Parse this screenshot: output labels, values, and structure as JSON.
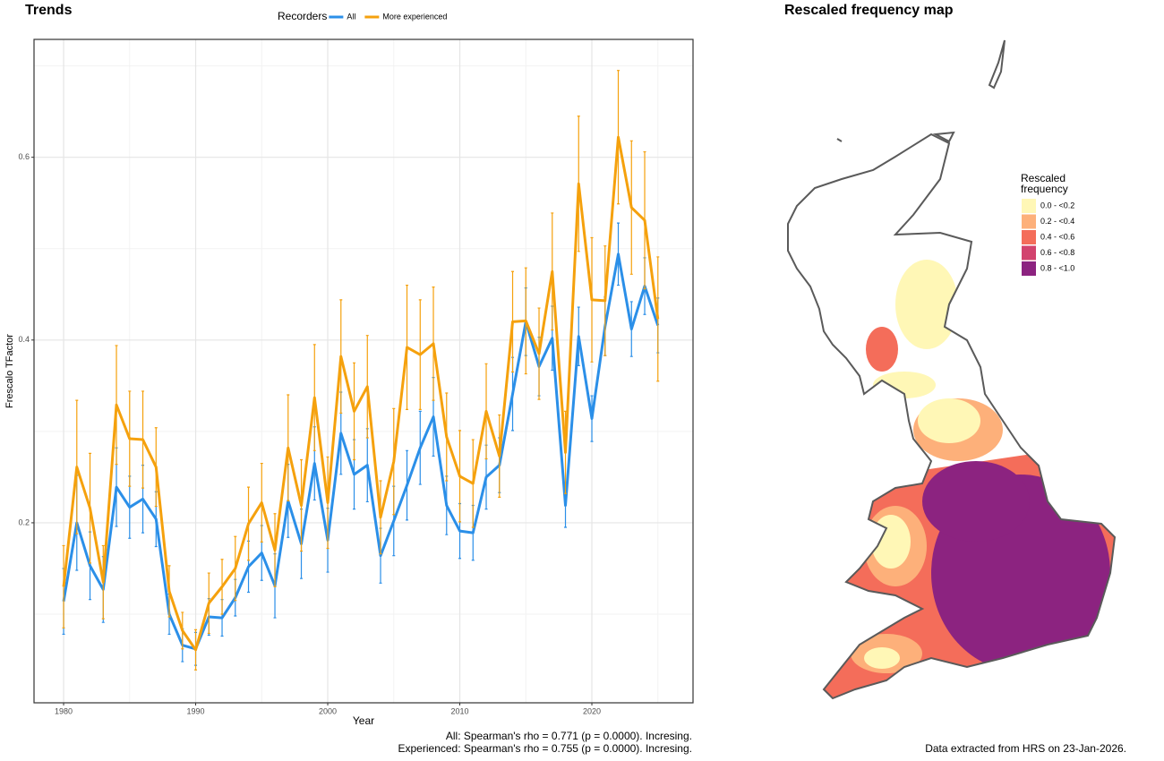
{
  "chart_data": [
    {
      "type": "line",
      "title": "Trends",
      "legend_title": "Recorders",
      "x_label": "Year",
      "y_label": "Frescalo TFactor",
      "x": [
        1980,
        1981,
        1982,
        1983,
        1984,
        1985,
        1986,
        1987,
        1988,
        1989,
        1990,
        1991,
        1992,
        1993,
        1994,
        1995,
        1996,
        1997,
        1998,
        1999,
        2000,
        2001,
        2002,
        2003,
        2004,
        2005,
        2006,
        2007,
        2008,
        2009,
        2010,
        2011,
        2012,
        2013,
        2014,
        2015,
        2016,
        2017,
        2018,
        2019,
        2020,
        2021,
        2022,
        2023,
        2024,
        2025
      ],
      "series": [
        {
          "name": "All",
          "color": "#2b8fe8",
          "values": [
            0.114,
            0.2,
            0.153,
            0.127,
            0.239,
            0.217,
            0.226,
            0.204,
            0.1,
            0.066,
            0.062,
            0.097,
            0.096,
            0.118,
            0.152,
            0.167,
            0.131,
            0.224,
            0.177,
            0.265,
            0.181,
            0.298,
            0.253,
            0.263,
            0.164,
            0.202,
            0.241,
            0.282,
            0.316,
            0.219,
            0.191,
            0.189,
            0.25,
            0.263,
            0.341,
            0.42,
            0.371,
            0.402,
            0.219,
            0.404,
            0.314,
            0.415,
            0.494,
            0.412,
            0.459,
            0.416
          ],
          "errors": [
            0.036,
            0.052,
            0.037,
            0.036,
            0.043,
            0.034,
            0.037,
            0.03,
            0.022,
            0.018,
            0.018,
            0.02,
            0.02,
            0.02,
            0.028,
            0.03,
            0.035,
            0.04,
            0.038,
            0.04,
            0.035,
            0.045,
            0.038,
            0.04,
            0.03,
            0.038,
            0.038,
            0.04,
            0.043,
            0.032,
            0.03,
            0.03,
            0.035,
            0.03,
            0.04,
            0.037,
            0.032,
            0.035,
            0.024,
            0.032,
            0.025,
            0.032,
            0.034,
            0.03,
            0.031,
            0.03
          ]
        },
        {
          "name": "More experienced",
          "color": "#f5a10d",
          "values": [
            0.13,
            0.261,
            0.216,
            0.135,
            0.329,
            0.292,
            0.291,
            0.261,
            0.125,
            0.082,
            0.061,
            0.112,
            0.13,
            0.15,
            0.199,
            0.222,
            0.17,
            0.282,
            0.219,
            0.337,
            0.222,
            0.382,
            0.322,
            0.349,
            0.206,
            0.267,
            0.392,
            0.384,
            0.396,
            0.294,
            0.251,
            0.243,
            0.322,
            0.273,
            0.42,
            0.421,
            0.385,
            0.475,
            0.277,
            0.571,
            0.444,
            0.443,
            0.622,
            0.545,
            0.531,
            0.423
          ],
          "errors": [
            0.045,
            0.073,
            0.06,
            0.04,
            0.065,
            0.052,
            0.053,
            0.043,
            0.028,
            0.02,
            0.022,
            0.033,
            0.03,
            0.035,
            0.04,
            0.043,
            0.04,
            0.058,
            0.05,
            0.058,
            0.05,
            0.062,
            0.053,
            0.056,
            0.04,
            0.058,
            0.068,
            0.06,
            0.062,
            0.048,
            0.05,
            0.048,
            0.052,
            0.045,
            0.055,
            0.058,
            0.05,
            0.064,
            0.045,
            0.074,
            0.068,
            0.06,
            0.073,
            0.073,
            0.075,
            0.068
          ]
        }
      ],
      "xlim": [
        1977.76,
        2027.66
      ],
      "xticks": [
        1980,
        1990,
        2000,
        2010,
        2020
      ],
      "ylim": [
        0.003,
        0.729
      ],
      "yticks": [
        0.2,
        0.4,
        0.6
      ],
      "grid": true,
      "annotations": [
        "All: Spearman's rho = 0.771 (p = 0.0000). Incresing.",
        "Experienced: Spearman's rho = 0.755 (p = 0.0000). Incresing."
      ]
    },
    {
      "type": "map",
      "title": "Rescaled frequency map",
      "legend_title": "Rescaled frequency",
      "legend": [
        {
          "label": "0.0 - <0.2",
          "color": "#fff7b6"
        },
        {
          "label": "0.2 - <0.4",
          "color": "#fdb07a"
        },
        {
          "label": "0.4 - <0.6",
          "color": "#f46d5a"
        },
        {
          "label": "0.6 - <0.8",
          "color": "#d2436e"
        },
        {
          "label": "0.8 - <1.0",
          "color": "#8c2380"
        }
      ],
      "note": "Data extracted from HRS on 23-Jan-2026."
    }
  ]
}
